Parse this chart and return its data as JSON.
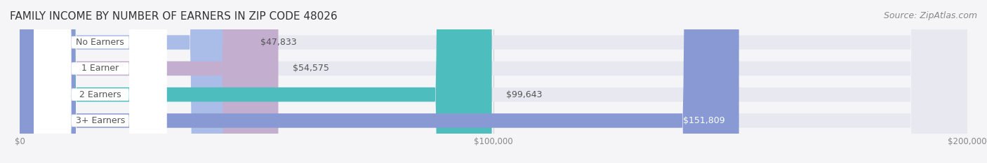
{
  "title": "FAMILY INCOME BY NUMBER OF EARNERS IN ZIP CODE 48026",
  "source": "Source: ZipAtlas.com",
  "categories": [
    "No Earners",
    "1 Earner",
    "2 Earners",
    "3+ Earners"
  ],
  "values": [
    47833,
    54575,
    99643,
    151809
  ],
  "bar_colors": [
    "#aabce8",
    "#c4aed0",
    "#4dbdbd",
    "#8899d4"
  ],
  "label_colors": [
    "#000000",
    "#000000",
    "#000000",
    "#ffffff"
  ],
  "bar_bg_color": "#e8e8f0",
  "background_color": "#f5f5f8",
  "xlim": [
    0,
    200000
  ],
  "bar_height": 0.55,
  "title_fontsize": 11,
  "source_fontsize": 9,
  "label_fontsize": 9,
  "value_fontsize": 9,
  "tick_fontsize": 8.5
}
